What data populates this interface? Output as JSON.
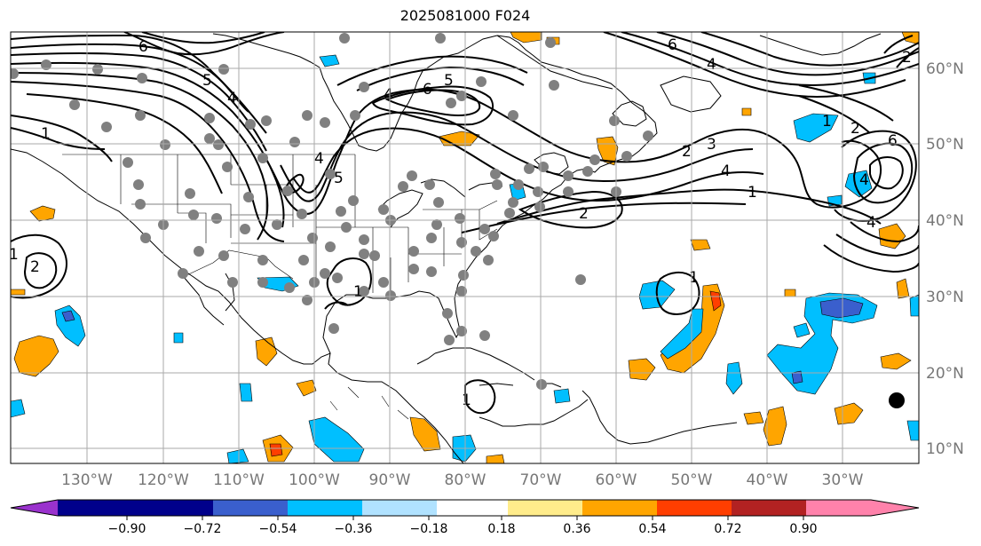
{
  "title": "2025081000 F024",
  "map": {
    "lon_ticks": [
      "130°W",
      "120°W",
      "110°W",
      "100°W",
      "90°W",
      "80°W",
      "70°W",
      "60°W",
      "50°W",
      "40°W",
      "30°W"
    ],
    "lat_ticks": [
      "60°N",
      "50°N",
      "40°N",
      "30°N",
      "20°N",
      "10°N"
    ],
    "contour_labels": [
      "6",
      "5",
      "4",
      "1",
      "6",
      "5",
      "4",
      "2",
      "3",
      "4",
      "1",
      "2",
      "6",
      "4",
      "4",
      "1",
      "2",
      "5",
      "4",
      "1",
      "2",
      "1",
      "6",
      "4",
      "2",
      "1",
      "1"
    ],
    "colors": {
      "grid": "#aaaaaa",
      "station": "#808080",
      "contour": "#000000"
    }
  },
  "colorbar": {
    "levels": [
      "−0.90",
      "−0.72",
      "−0.54",
      "−0.36",
      "−0.18",
      "0.18",
      "0.36",
      "0.54",
      "0.72",
      "0.90"
    ],
    "colors": [
      "#9a32cd",
      "#00008b",
      "#3a5fcd",
      "#00bfff",
      "#b0e2ff",
      "#ffffff",
      "#ffec8b",
      "#ffa500",
      "#ff3e00",
      "#b22222",
      "#ff82ab"
    ]
  }
}
